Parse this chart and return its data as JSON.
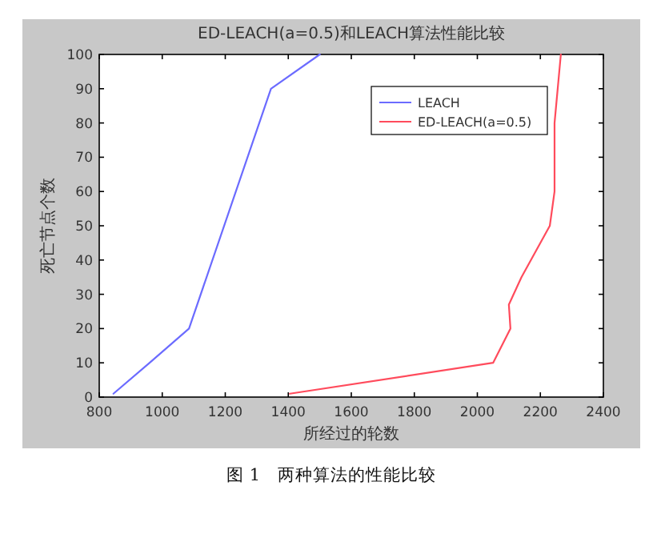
{
  "chart_data": {
    "type": "line",
    "title": "ED-LEACH(a=0.5)和LEACH算法性能比较",
    "xlabel": "所经过的轮数",
    "ylabel": "死亡节点个数",
    "annotations": [
      "图 1　两种算法的性能比较"
    ],
    "series": [
      {
        "name": "LEACH",
        "color": "#6b6bff",
        "x": [
          845,
          960,
          1085,
          1345,
          1500
        ],
        "values": [
          1,
          10,
          20,
          90,
          100
        ]
      },
      {
        "name": "ED-LEACH(a=0.5)",
        "color": "#ff4b5c",
        "x": [
          1405,
          2050,
          2105,
          2100,
          2140,
          2230,
          2245,
          2245,
          2255,
          2265
        ],
        "values": [
          1,
          10,
          20,
          27,
          35,
          50,
          60,
          80,
          90,
          100
        ]
      }
    ],
    "xlim": [
      800,
      2400
    ],
    "xticks": [
      800,
      1000,
      1200,
      1400,
      1600,
      1800,
      2000,
      2200,
      2400
    ],
    "ylim": [
      0,
      100
    ],
    "yticks": [
      0,
      10,
      20,
      30,
      40,
      50,
      60,
      70,
      80,
      90,
      100
    ],
    "grid": false,
    "legend": "top right",
    "line_style": "solid",
    "marker": "none"
  }
}
